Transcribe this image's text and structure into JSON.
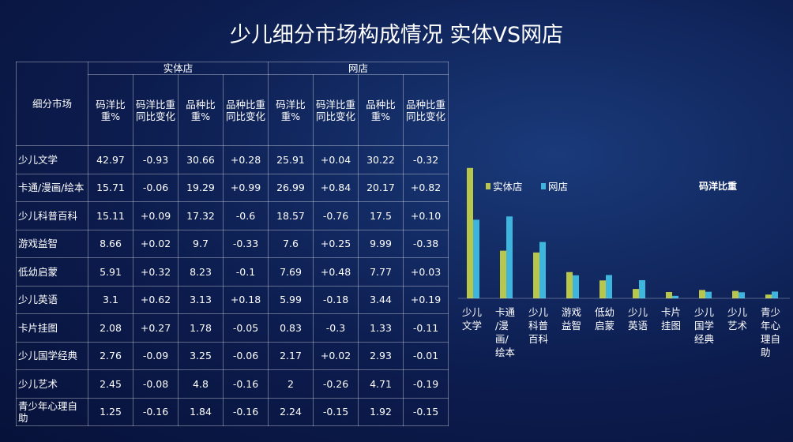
{
  "title": "少儿细分市场构成情况 实体VS网店",
  "table": {
    "corner": "细分市场",
    "groups": [
      "实体店",
      "网店"
    ],
    "subheaders": [
      "码洋比重%",
      "码洋比重同比变化",
      "品种比重%",
      "品种比重同比变化",
      "码洋比重%",
      "码洋比重同比变化",
      "品种比重%",
      "品种比重同比变化"
    ],
    "rows": [
      [
        "少儿文学",
        "42.97",
        "-0.93",
        "30.66",
        "+0.28",
        "25.91",
        "+0.04",
        "30.22",
        "-0.32"
      ],
      [
        "卡通/漫画/绘本",
        "15.71",
        "-0.06",
        "19.29",
        "+0.99",
        "26.99",
        "+0.84",
        "20.17",
        "+0.82"
      ],
      [
        "少儿科普百科",
        "15.11",
        "+0.09",
        "17.32",
        "-0.6",
        "18.57",
        "-0.76",
        "17.5",
        "+0.10"
      ],
      [
        "游戏益智",
        "8.66",
        "+0.02",
        "9.7",
        "-0.33",
        "7.6",
        "+0.25",
        "9.99",
        "-0.38"
      ],
      [
        "低幼启蒙",
        "5.91",
        "+0.32",
        "8.23",
        "-0.1",
        "7.69",
        "+0.48",
        "7.77",
        "+0.03"
      ],
      [
        "少儿英语",
        "3.1",
        "+0.62",
        "3.13",
        "+0.18",
        "5.99",
        "-0.18",
        "3.44",
        "+0.19"
      ],
      [
        "卡片挂图",
        "2.08",
        "+0.27",
        "1.78",
        "-0.05",
        "0.83",
        "-0.3",
        "1.33",
        "-0.11"
      ],
      [
        "少儿国学经典",
        "2.76",
        "-0.09",
        "3.25",
        "-0.06",
        "2.17",
        "+0.02",
        "2.93",
        "-0.01"
      ],
      [
        "少儿艺术",
        "2.45",
        "-0.08",
        "4.8",
        "-0.16",
        "2",
        "-0.26",
        "4.71",
        "-0.19"
      ],
      [
        "青少年心理自助",
        "1.25",
        "-0.16",
        "1.84",
        "-0.16",
        "2.24",
        "-0.15",
        "1.92",
        "-0.15"
      ]
    ]
  },
  "chart_data": {
    "type": "bar",
    "title": "码洋比重",
    "categories": [
      "少儿文学",
      "卡通/漫画/绘本",
      "少儿科普百科",
      "游戏益智",
      "低幼启蒙",
      "少儿英语",
      "卡片挂图",
      "少儿国学经典",
      "少儿艺术",
      "青少年心理自助"
    ],
    "series": [
      {
        "name": "实体店",
        "color": "#b8c64c",
        "values": [
          42.97,
          15.71,
          15.11,
          8.66,
          5.91,
          3.1,
          2.08,
          2.76,
          2.45,
          1.25
        ]
      },
      {
        "name": "网店",
        "color": "#3db5dc",
        "values": [
          25.91,
          26.99,
          18.57,
          7.6,
          7.69,
          5.99,
          0.83,
          2.17,
          2,
          2.24
        ]
      }
    ],
    "ylim": [
      0,
      45
    ],
    "legend": "top-left"
  }
}
